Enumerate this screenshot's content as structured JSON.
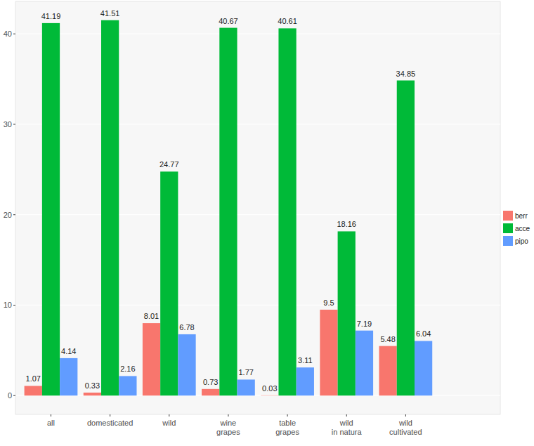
{
  "chart_data": {
    "type": "bar",
    "categories": [
      "all",
      "domesticated",
      "wild",
      "wine\ngrapes",
      "table\ngrapes",
      "wild\nin natura",
      "wild\ncultivated"
    ],
    "series": [
      {
        "name": "berr",
        "color": "#F8766D",
        "values": [
          1.07,
          0.33,
          8.01,
          0.73,
          0.03,
          9.5,
          5.48
        ]
      },
      {
        "name": "acce",
        "color": "#00BA38",
        "values": [
          41.19,
          41.51,
          24.77,
          40.67,
          40.61,
          18.16,
          34.85
        ]
      },
      {
        "name": "pipo",
        "color": "#619CFF",
        "values": [
          4.14,
          2.16,
          6.78,
          1.77,
          3.11,
          7.19,
          6.04
        ]
      }
    ],
    "ylim": [
      -2.08,
      43.59
    ],
    "yticks": [
      0,
      10,
      20,
      30,
      40
    ],
    "grid": true,
    "legend": "right",
    "data_labels": true
  }
}
